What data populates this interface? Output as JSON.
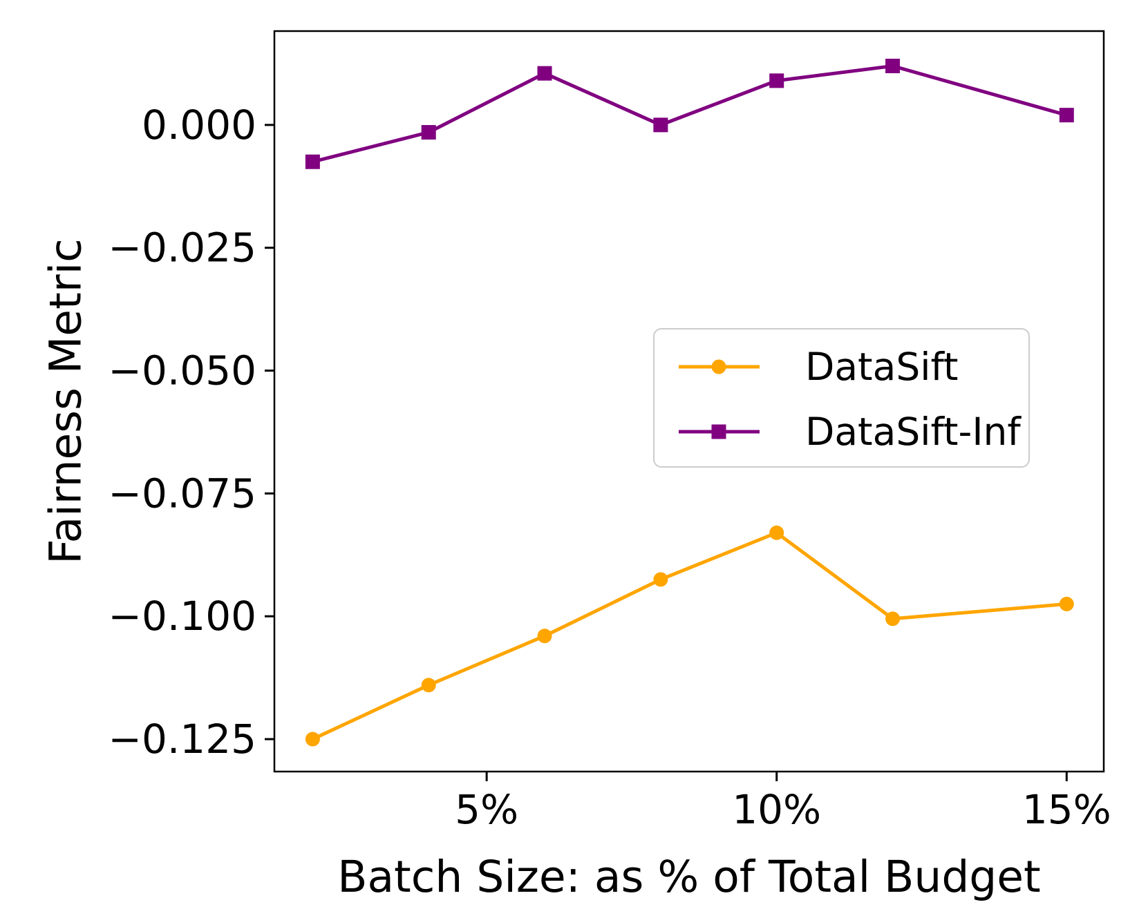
{
  "figure": {
    "background": "#ffffff"
  },
  "chart_data": {
    "type": "line",
    "x": [
      2,
      4,
      6,
      8,
      10,
      12,
      15
    ],
    "x_unit": "% of total budget",
    "series": [
      {
        "name": "DataSift",
        "color": "#FFA500",
        "marker": "circle",
        "values": [
          -0.125,
          -0.114,
          -0.104,
          -0.0925,
          -0.083,
          -0.1005,
          -0.0975
        ]
      },
      {
        "name": "DataSift-Inf",
        "color": "#800080",
        "marker": "square",
        "values": [
          -0.0075,
          -0.0015,
          0.0105,
          0.0,
          0.009,
          0.012,
          0.002
        ]
      }
    ],
    "title": "",
    "xlabel": "Batch Size: as % of Total Budget",
    "ylabel": "Fairness Metric",
    "xlim": [
      1.34,
      15.64
    ],
    "ylim": [
      -0.1316,
      0.0191
    ],
    "xticks": {
      "values": [
        5,
        10,
        15
      ],
      "labels": [
        "5%",
        "10%",
        "15%"
      ]
    },
    "yticks": {
      "values": [
        0,
        -0.025,
        -0.05,
        -0.075,
        -0.1,
        -0.125
      ],
      "labels": [
        "0.000",
        "−0.025",
        "−0.050",
        "−0.075",
        "−0.100",
        "−0.125"
      ]
    },
    "legend": {
      "position": "center right",
      "entries": [
        "DataSift",
        "DataSift-Inf"
      ]
    },
    "grid": false,
    "axis_color": "#000000"
  }
}
